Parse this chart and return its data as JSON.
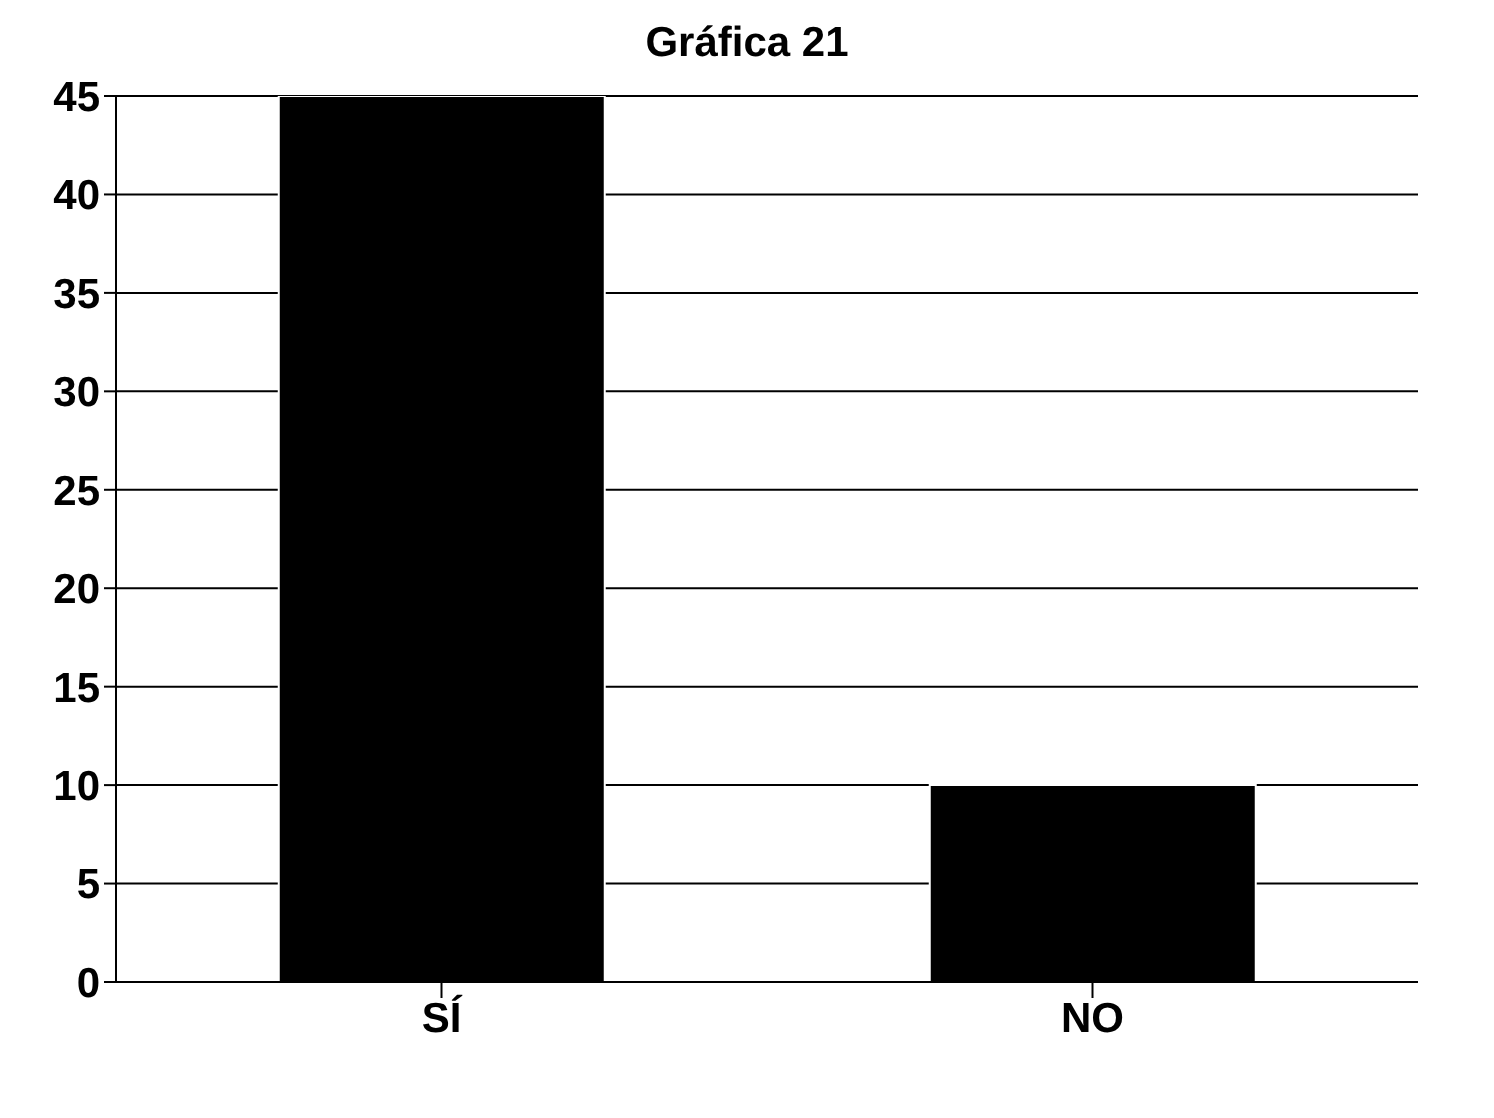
{
  "chart_data": {
    "type": "bar",
    "title": "Gráfica 21",
    "categories": [
      "SÍ",
      "NO"
    ],
    "values": [
      45,
      10
    ],
    "color": "#000000",
    "ylim": [
      0,
      45
    ],
    "yticks": [
      0,
      5,
      10,
      15,
      20,
      25,
      30,
      35,
      40,
      45
    ],
    "grid": "y"
  }
}
